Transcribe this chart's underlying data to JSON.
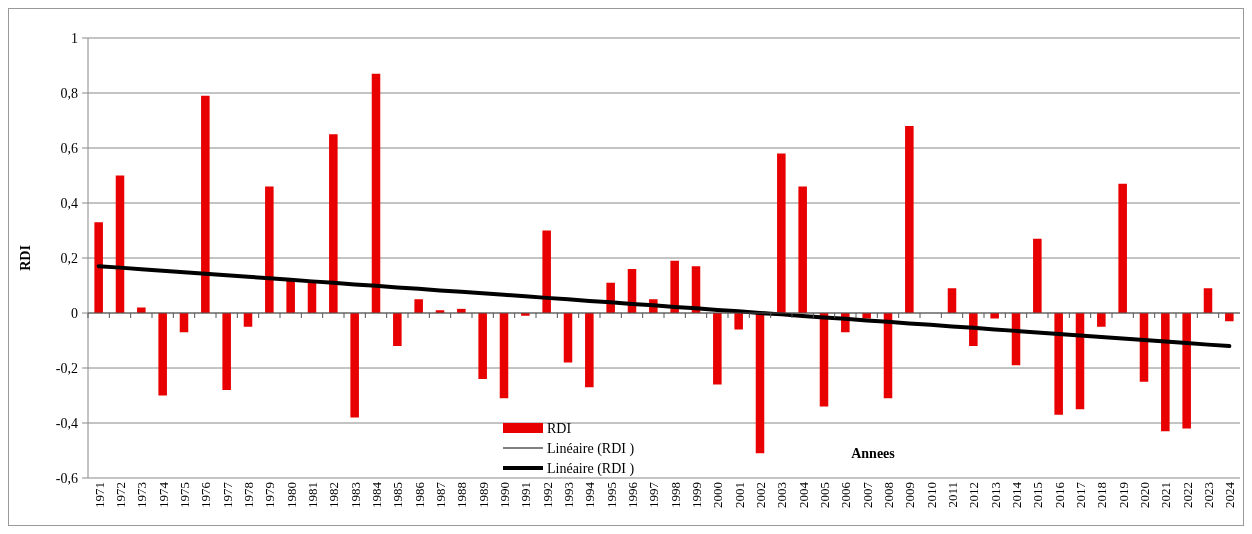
{
  "chart_data": {
    "type": "bar",
    "xlabel": "Annees",
    "ylabel": "RDI",
    "categories": [
      "1971",
      "1972",
      "1973",
      "1974",
      "1975",
      "1976",
      "1977",
      "1978",
      "1979",
      "1980",
      "1981",
      "1982",
      "1983",
      "1984",
      "1985",
      "1986",
      "1987",
      "1988",
      "1989",
      "1990",
      "1991",
      "1992",
      "1993",
      "1994",
      "1995",
      "1996",
      "1997",
      "1998",
      "1999",
      "2000",
      "2001",
      "2002",
      "2003",
      "2004",
      "2005",
      "2006",
      "2007",
      "2008",
      "2009",
      "2010",
      "2011",
      "2012",
      "2013",
      "2014",
      "2015",
      "2016",
      "2017",
      "2018",
      "2019",
      "2020",
      "2021",
      "2022",
      "2023",
      "2024"
    ],
    "series": [
      {
        "name": "RDI",
        "color": "#e80000",
        "values": [
          0.33,
          0.5,
          0.02,
          -0.3,
          -0.07,
          0.79,
          -0.28,
          -0.05,
          0.46,
          0.12,
          0.11,
          0.65,
          -0.38,
          0.87,
          -0.12,
          0.05,
          0.01,
          0.015,
          -0.24,
          -0.31,
          -0.01,
          0.3,
          -0.18,
          -0.27,
          0.11,
          0.16,
          0.05,
          0.19,
          0.17,
          -0.26,
          -0.06,
          -0.51,
          0.58,
          0.46,
          -0.34,
          -0.07,
          -0.02,
          -0.31,
          0.68,
          0,
          0.09,
          -0.12,
          -0.02,
          -0.19,
          0.27,
          -0.37,
          -0.35,
          -0.05,
          0.47,
          -0.25,
          -0.43,
          -0.42,
          0.09,
          -0.03
        ]
      },
      {
        "name": "Linéaire (RDI )",
        "type": "line",
        "color": "#000000",
        "values": [
          null,
          null,
          null,
          null,
          null,
          null,
          null,
          null,
          null,
          null,
          null,
          null,
          null,
          null,
          null,
          null,
          null,
          null,
          null,
          null,
          null,
          null,
          null,
          null,
          null,
          null,
          null,
          null,
          null,
          null,
          null,
          null,
          null,
          null,
          null,
          null,
          null,
          null,
          null,
          null,
          null,
          null,
          null,
          null,
          null,
          null,
          null,
          null,
          null,
          null,
          null,
          null,
          null,
          null
        ]
      },
      {
        "name": "Linéaire (RDI )",
        "type": "line",
        "color": "#000000",
        "values": [
          0.17,
          0.165,
          0.159,
          0.154,
          0.148,
          0.143,
          0.137,
          0.132,
          0.126,
          0.121,
          0.115,
          0.11,
          0.104,
          0.099,
          0.093,
          0.088,
          0.082,
          0.077,
          0.072,
          0.066,
          0.061,
          0.055,
          0.05,
          0.044,
          0.039,
          0.033,
          0.028,
          0.022,
          0.017,
          0.011,
          0.006,
          0,
          -0.005,
          -0.011,
          -0.016,
          -0.021,
          -0.027,
          -0.032,
          -0.038,
          -0.043,
          -0.049,
          -0.054,
          -0.06,
          -0.065,
          -0.071,
          -0.076,
          -0.082,
          -0.087,
          -0.093,
          -0.098,
          -0.104,
          -0.109,
          -0.115,
          -0.12
        ]
      }
    ],
    "ylim": [
      -0.6,
      1
    ],
    "yticks": [
      {
        "value": -0.6,
        "label": "-0,6"
      },
      {
        "value": -0.4,
        "label": "-0,4"
      },
      {
        "value": -0.2,
        "label": "-0,2"
      },
      0,
      {
        "value": 0.2,
        "label": "0,2"
      },
      {
        "value": 0.4,
        "label": "0,4"
      },
      {
        "value": 0.6,
        "label": "0,6"
      },
      {
        "value": 0.8,
        "label": "0,8"
      },
      1
    ],
    "grid": "y",
    "legend": "bottom"
  }
}
